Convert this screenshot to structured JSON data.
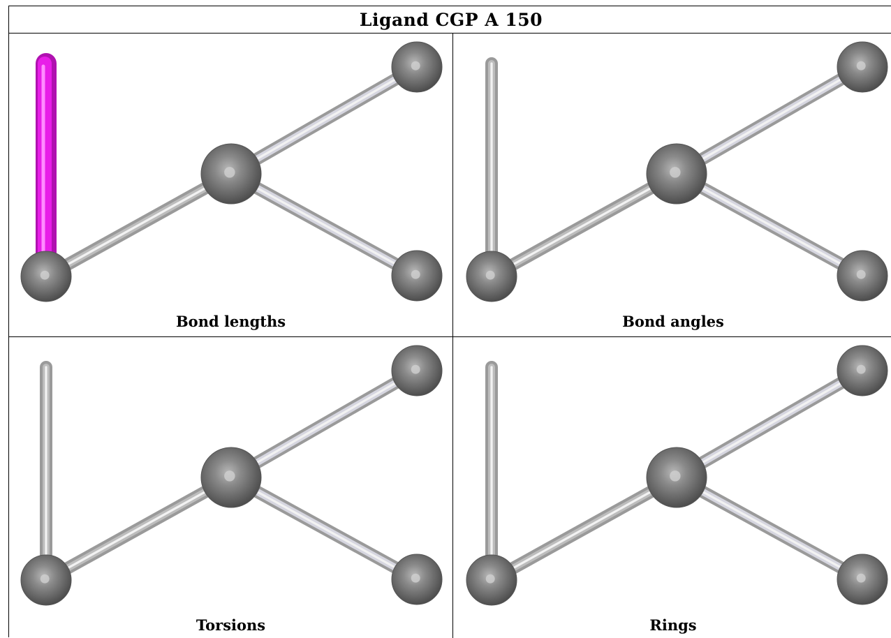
{
  "title": "Ligand CGP A 150",
  "panels": [
    {
      "caption": "Bond lengths",
      "highlight_bond": "vertical",
      "highlight_color": "#e81ee8"
    },
    {
      "caption": "Bond angles",
      "highlight_bond": null,
      "highlight_color": null
    },
    {
      "caption": "Torsions",
      "highlight_bond": null,
      "highlight_color": null
    },
    {
      "caption": "Rings",
      "highlight_bond": null,
      "highlight_color": null
    }
  ],
  "colors": {
    "atom": "#6e6e6e",
    "bond": "#bdbdbd",
    "bond_light": "#d6d6e0"
  }
}
